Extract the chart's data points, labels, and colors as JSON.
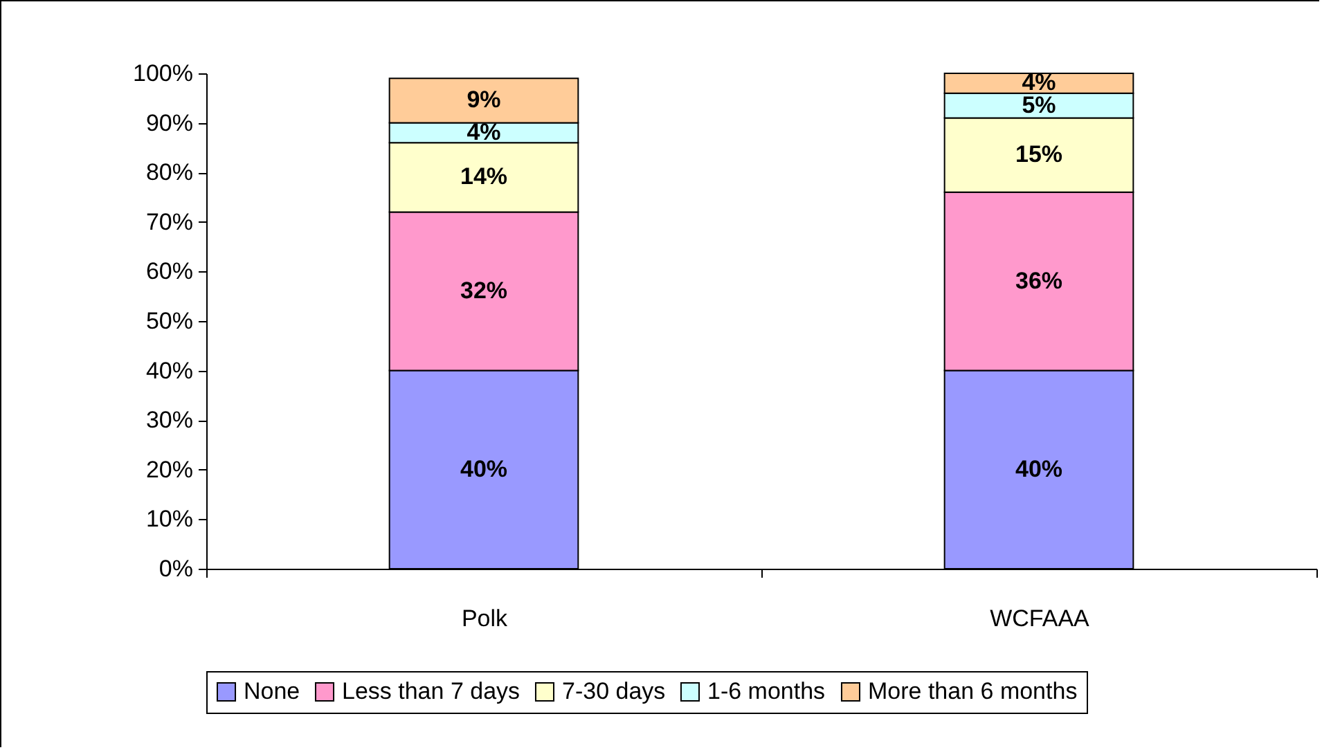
{
  "chart_data": {
    "type": "bar",
    "stacked": true,
    "categories": [
      "Polk",
      "WCFAAA"
    ],
    "series": [
      {
        "name": "None",
        "color": "#9999ff",
        "values": [
          40,
          40
        ],
        "value_labels": [
          "40%",
          "40%"
        ]
      },
      {
        "name": "Less than 7 days",
        "color": "#ff99cc",
        "values": [
          32,
          36
        ],
        "value_labels": [
          "32%",
          "36%"
        ]
      },
      {
        "name": "7-30 days",
        "color": "#ffffcc",
        "values": [
          14,
          15
        ],
        "value_labels": [
          "14%",
          "15%"
        ]
      },
      {
        "name": "1-6 months",
        "color": "#ccffff",
        "values": [
          4,
          5
        ],
        "value_labels": [
          "4%",
          "5%"
        ]
      },
      {
        "name": "More than 6 months",
        "color": "#ffcc99",
        "values": [
          9,
          4
        ],
        "value_labels": [
          "9%",
          "4%"
        ]
      }
    ],
    "ylim": [
      0,
      100
    ],
    "yticks": [
      {
        "value": 0,
        "label": "0%"
      },
      {
        "value": 10,
        "label": "10%"
      },
      {
        "value": 20,
        "label": "20%"
      },
      {
        "value": 30,
        "label": "30%"
      },
      {
        "value": 40,
        "label": "40%"
      },
      {
        "value": 50,
        "label": "50%"
      },
      {
        "value": 60,
        "label": "60%"
      },
      {
        "value": 70,
        "label": "70%"
      },
      {
        "value": 80,
        "label": "80%"
      },
      {
        "value": 90,
        "label": "90%"
      },
      {
        "value": 100,
        "label": "100%"
      }
    ],
    "grid": false,
    "legend": "bottom"
  }
}
